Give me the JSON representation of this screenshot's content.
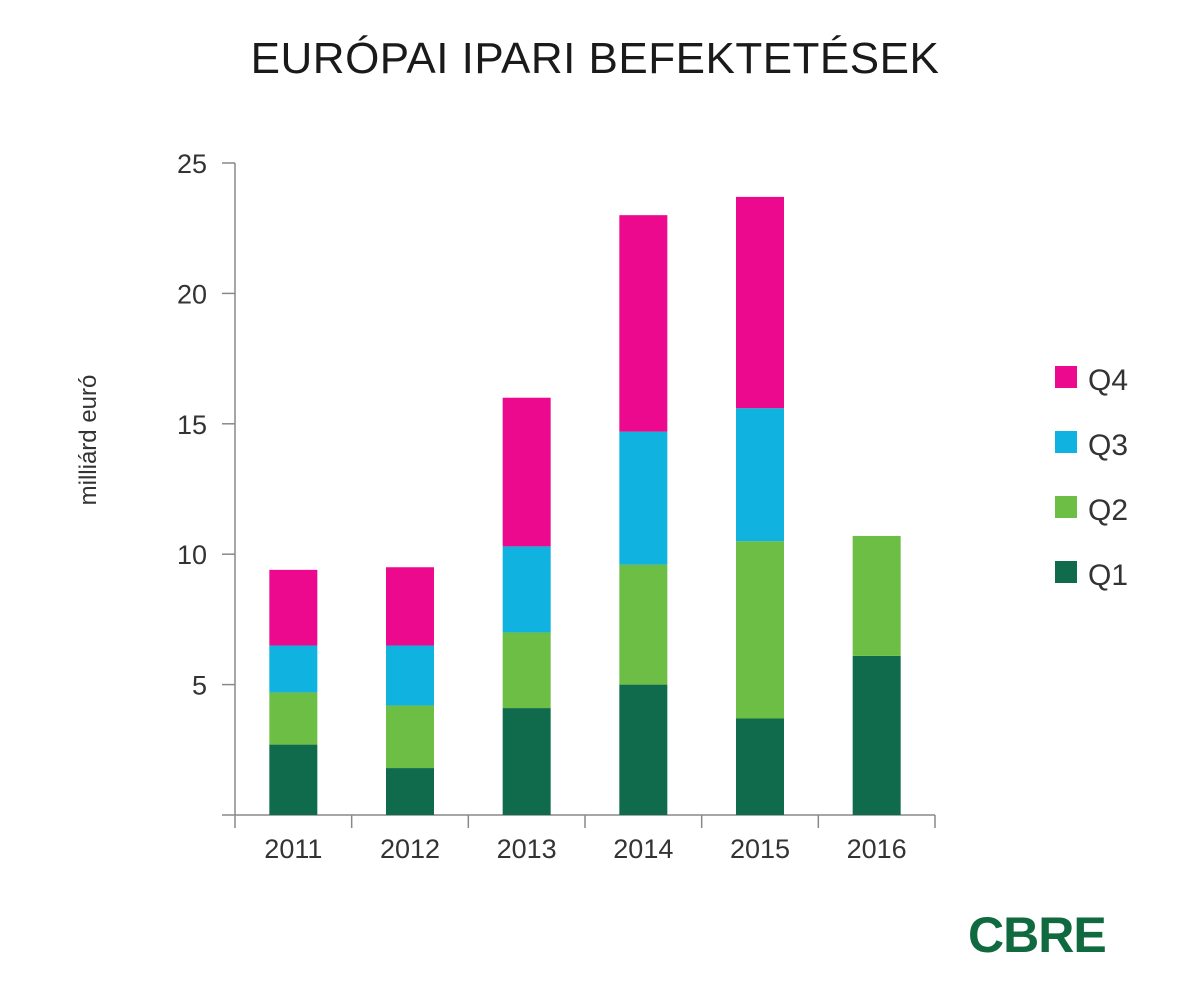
{
  "logo": "CBRE",
  "colors": {
    "Q1": "#106b4d",
    "Q2": "#6dbe45",
    "Q3": "#10b2e0",
    "Q4": "#ec098d"
  },
  "chart_data": {
    "type": "bar",
    "stacked": true,
    "title": "EURÓPAI IPARI BEFEKTETÉSEK",
    "xlabel": "",
    "ylabel": "milliárd euró",
    "ylim": [
      0,
      25
    ],
    "yticks": [
      5,
      10,
      15,
      20,
      25
    ],
    "categories": [
      "2011",
      "2012",
      "2013",
      "2014",
      "2015",
      "2016"
    ],
    "series": [
      {
        "name": "Q1",
        "values": [
          2.7,
          1.8,
          4.1,
          5.0,
          3.7,
          6.1
        ]
      },
      {
        "name": "Q2",
        "values": [
          2.0,
          2.4,
          2.9,
          4.6,
          6.8,
          4.6
        ]
      },
      {
        "name": "Q3",
        "values": [
          1.8,
          2.3,
          3.3,
          5.1,
          5.1,
          null
        ]
      },
      {
        "name": "Q4",
        "values": [
          2.9,
          3.0,
          5.7,
          8.3,
          8.1,
          null
        ]
      }
    ],
    "legend": {
      "placement": "right",
      "order": [
        "Q4",
        "Q3",
        "Q2",
        "Q1"
      ]
    },
    "grid": false
  }
}
